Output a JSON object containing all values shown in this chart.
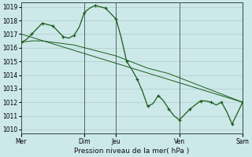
{
  "bg_color": "#cce8e8",
  "grid_color": "#b8cece",
  "line_color": "#1a5c1a",
  "ylabel_min": 1010,
  "ylabel_max": 1019,
  "xlabel": "Pression niveau de la mer( hPa )",
  "xtick_labels": [
    "Mer",
    "Dim",
    "Jeu",
    "Ven",
    "Sam"
  ],
  "xtick_positions": [
    0,
    6,
    9,
    15,
    21
  ],
  "vlines": [
    0,
    6,
    9,
    15,
    21
  ],
  "series1_x": [
    0,
    0.5,
    1,
    1.5,
    2,
    2.5,
    3,
    3.5,
    4,
    4.5,
    5,
    5.5,
    6,
    6.5,
    7,
    7.5,
    8,
    8.5,
    9,
    9.5,
    10,
    10.5,
    11,
    11.5,
    12,
    12.5,
    13,
    13.5,
    14,
    14.5,
    15,
    15.5,
    16,
    16.5,
    17,
    17.5,
    18,
    18.5,
    19,
    19.5,
    20,
    20.5,
    21
  ],
  "series1_y": [
    1016.4,
    1016.6,
    1017.0,
    1017.4,
    1017.8,
    1017.7,
    1017.6,
    1017.2,
    1016.8,
    1016.7,
    1016.9,
    1017.5,
    1018.6,
    1018.9,
    1019.1,
    1019.0,
    1018.9,
    1018.5,
    1018.1,
    1016.7,
    1015.0,
    1014.4,
    1013.7,
    1012.8,
    1011.7,
    1011.9,
    1012.5,
    1012.1,
    1011.5,
    1011.0,
    1010.7,
    1011.1,
    1011.5,
    1011.8,
    1012.1,
    1012.1,
    1012.0,
    1011.8,
    1012.0,
    1011.3,
    1010.4,
    1011.2,
    1012.0
  ],
  "series2_x": [
    0,
    1,
    2,
    3,
    4,
    5,
    6,
    7,
    8,
    9,
    10,
    11,
    12,
    13,
    14,
    15,
    16,
    17,
    18,
    19,
    20,
    21
  ],
  "series2_y": [
    1016.4,
    1016.5,
    1016.5,
    1016.4,
    1016.3,
    1016.2,
    1016.0,
    1015.8,
    1015.6,
    1015.4,
    1015.1,
    1014.8,
    1014.5,
    1014.3,
    1014.1,
    1013.8,
    1013.5,
    1013.2,
    1012.9,
    1012.6,
    1012.3,
    1012.0
  ],
  "series3_x": [
    0,
    21
  ],
  "series3_y": [
    1017.0,
    1012.0
  ],
  "marker_x1": [
    0,
    1,
    2,
    3,
    4,
    5,
    6,
    7,
    8,
    9,
    10,
    11,
    12,
    13,
    14,
    15,
    16,
    17,
    18,
    19,
    20,
    21
  ],
  "marker_y1": [
    1016.4,
    1017.0,
    1017.8,
    1017.6,
    1016.8,
    1016.9,
    1018.6,
    1019.1,
    1018.9,
    1018.1,
    1015.0,
    1013.7,
    1011.7,
    1012.5,
    1011.5,
    1010.7,
    1011.5,
    1012.1,
    1012.0,
    1012.0,
    1010.4,
    1012.0
  ]
}
